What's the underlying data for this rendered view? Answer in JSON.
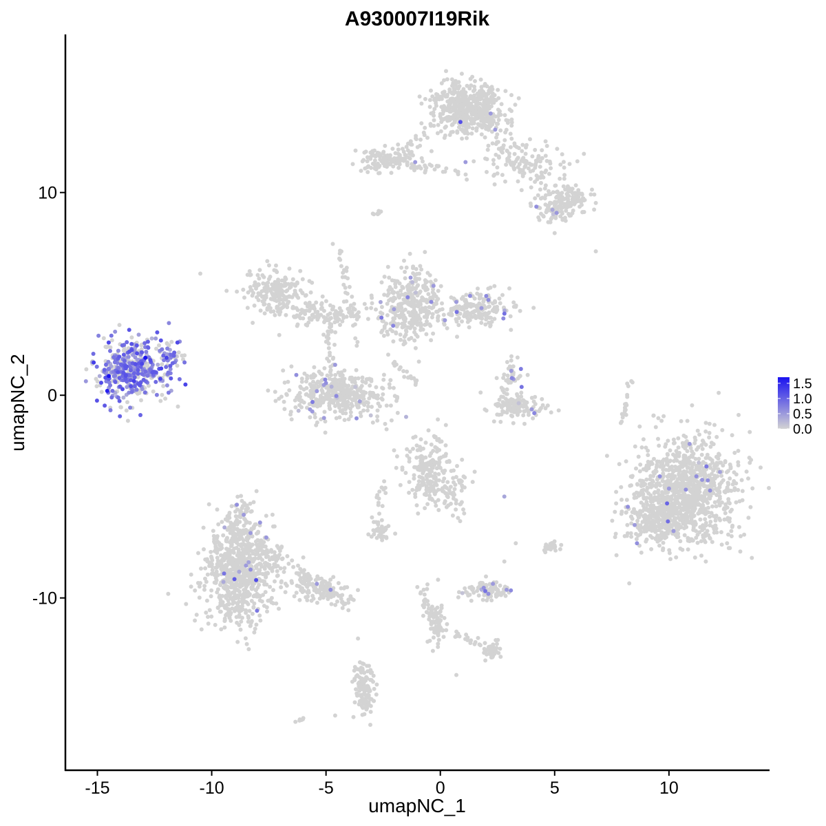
{
  "chart_data": {
    "type": "scatter",
    "title": "A930007I19Rik",
    "xlabel": "umapNC_1",
    "ylabel": "umapNC_2",
    "xlim": [
      -16.4,
      14.4
    ],
    "ylim": [
      -18.5,
      17.8
    ],
    "xticks": [
      -15,
      -10,
      -5,
      0,
      5,
      10
    ],
    "xtick_labels": [
      "-15",
      "-10",
      "-5",
      "0",
      "5",
      "10"
    ],
    "yticks": [
      -10,
      0,
      10
    ],
    "ytick_labels": [
      "-10",
      "0",
      "10"
    ],
    "color_scale": {
      "low_color": "#d3d3d3",
      "high_color": "#1a12f0",
      "min": 0.0,
      "max": 1.7,
      "ticks": [
        0.0,
        0.5,
        1.0,
        1.5
      ],
      "tick_labels": [
        "0.0",
        "0.5",
        "1.0",
        "1.5"
      ],
      "legend_position": "right"
    },
    "clusters": [
      {
        "cx": -13.5,
        "cy": 1.2,
        "sx": 0.8,
        "sy": 0.75,
        "n": 420,
        "expr_frac": 0.62,
        "expr_mean": 0.75
      },
      {
        "cx": -11.8,
        "cy": 2.0,
        "sx": 0.3,
        "sy": 0.4,
        "n": 30,
        "expr_frac": 0.6,
        "expr_mean": 0.7
      },
      {
        "cx": -8.8,
        "cy": -8.7,
        "sx": 0.75,
        "sy": 1.25,
        "n": 780,
        "expr_frac": 0.01,
        "expr_mean": 0.5
      },
      {
        "cx": -5.4,
        "cy": -9.6,
        "sx": 0.7,
        "sy": 0.35,
        "n": 90,
        "expr_frac": 0.02,
        "expr_mean": 0.5
      },
      {
        "cx": -4.5,
        "cy": 0.1,
        "sx": 1.1,
        "sy": 0.6,
        "n": 430,
        "expr_frac": 0.02,
        "expr_mean": 0.5
      },
      {
        "cx": -7.2,
        "cy": 5.1,
        "sx": 0.65,
        "sy": 0.55,
        "n": 190,
        "expr_frac": 0.0,
        "expr_mean": 0.4
      },
      {
        "cx": -5.0,
        "cy": 4.0,
        "sx": 0.9,
        "sy": 0.3,
        "n": 110,
        "expr_frac": 0.0,
        "expr_mean": 0.4
      },
      {
        "cx": -1.2,
        "cy": 4.5,
        "sx": 0.65,
        "sy": 0.85,
        "n": 330,
        "expr_frac": 0.015,
        "expr_mean": 0.5
      },
      {
        "cx": 1.6,
        "cy": 4.2,
        "sx": 0.7,
        "sy": 0.45,
        "n": 170,
        "expr_frac": 0.04,
        "expr_mean": 0.6
      },
      {
        "cx": 1.2,
        "cy": 14.2,
        "sx": 0.75,
        "sy": 0.65,
        "n": 500,
        "expr_frac": 0.005,
        "expr_mean": 0.5
      },
      {
        "cx": -2.3,
        "cy": 11.6,
        "sx": 0.7,
        "sy": 0.3,
        "n": 130,
        "expr_frac": 0.0,
        "expr_mean": 0.4
      },
      {
        "cx": 3.6,
        "cy": 11.5,
        "sx": 0.9,
        "sy": 0.6,
        "n": 90,
        "expr_frac": 0.0,
        "expr_mean": 0.4
      },
      {
        "cx": 5.6,
        "cy": 9.6,
        "sx": 0.5,
        "sy": 0.35,
        "n": 90,
        "expr_frac": 0.01,
        "expr_mean": 0.4
      },
      {
        "cx": 4.8,
        "cy": 9.2,
        "sx": 0.35,
        "sy": 0.4,
        "n": 60,
        "expr_frac": 0.01,
        "expr_mean": 0.4
      },
      {
        "cx": 3.4,
        "cy": -0.6,
        "sx": 0.55,
        "sy": 0.3,
        "n": 120,
        "expr_frac": 0.02,
        "expr_mean": 0.5
      },
      {
        "cx": 3.2,
        "cy": 0.7,
        "sx": 0.25,
        "sy": 0.5,
        "n": 35,
        "expr_frac": 0.05,
        "expr_mean": 0.5
      },
      {
        "cx": 10.7,
        "cy": -4.8,
        "sx": 1.15,
        "sy": 1.3,
        "n": 1050,
        "expr_frac": 0.01,
        "expr_mean": 0.55
      },
      {
        "cx": 9.4,
        "cy": -6.2,
        "sx": 0.6,
        "sy": 0.55,
        "n": 160,
        "expr_frac": 0.01,
        "expr_mean": 0.5
      },
      {
        "cx": -0.5,
        "cy": -3.8,
        "sx": 0.55,
        "sy": 0.8,
        "n": 200,
        "expr_frac": 0.0,
        "expr_mean": 0.4
      },
      {
        "cx": 0.6,
        "cy": -4.8,
        "sx": 0.3,
        "sy": 0.55,
        "n": 50,
        "expr_frac": 0.0,
        "expr_mean": 0.4
      },
      {
        "cx": 2.1,
        "cy": -9.6,
        "sx": 0.55,
        "sy": 0.22,
        "n": 90,
        "expr_frac": 0.05,
        "expr_mean": 0.5
      },
      {
        "cx": -0.1,
        "cy": -11.3,
        "sx": 0.2,
        "sy": 0.6,
        "n": 55,
        "expr_frac": 0.0,
        "expr_mean": 0.4
      },
      {
        "cx": -3.3,
        "cy": -14.5,
        "sx": 0.2,
        "sy": 0.6,
        "n": 90,
        "expr_frac": 0.0,
        "expr_mean": 0.4
      },
      {
        "cx": 2.3,
        "cy": -12.6,
        "sx": 0.2,
        "sy": 0.2,
        "n": 35,
        "expr_frac": 0.0,
        "expr_mean": 0.4
      },
      {
        "cx": -2.6,
        "cy": -6.8,
        "sx": 0.25,
        "sy": 0.2,
        "n": 40,
        "expr_frac": 0.0,
        "expr_mean": 0.4
      },
      {
        "cx": 4.9,
        "cy": -7.5,
        "sx": 0.25,
        "sy": 0.15,
        "n": 25,
        "expr_frac": 0.0,
        "expr_mean": 0.4
      }
    ],
    "paths": [
      {
        "from": [
          -11.9,
          0.9
        ],
        "to": [
          -11.5,
          2.7
        ],
        "n": 14,
        "jitter": 0.1,
        "expr_frac": 0.7
      },
      {
        "from": [
          1.5,
          14.0
        ],
        "to": [
          3.6,
          11.3
        ],
        "n": 60,
        "jitter": 0.3,
        "expr_frac": 0.0
      },
      {
        "from": [
          3.6,
          11.3
        ],
        "to": [
          5.9,
          9.6
        ],
        "n": 40,
        "jitter": 0.3,
        "expr_frac": 0.0
      },
      {
        "from": [
          0.3,
          14.0
        ],
        "to": [
          -1.5,
          12.2
        ],
        "n": 20,
        "jitter": 0.2,
        "expr_frac": 0.0
      },
      {
        "from": [
          -1.2,
          11.3
        ],
        "to": [
          1.0,
          11.0
        ],
        "n": 25,
        "jitter": 0.12,
        "expr_frac": 0.0
      },
      {
        "from": [
          -4.5,
          7.5
        ],
        "to": [
          -3.5,
          2.5
        ],
        "n": 35,
        "jitter": 0.12,
        "expr_frac": 0.0
      },
      {
        "from": [
          -4.9,
          3.8
        ],
        "to": [
          -4.8,
          1.5
        ],
        "n": 25,
        "jitter": 0.12,
        "expr_frac": 0.0
      },
      {
        "from": [
          -2.0,
          1.6
        ],
        "to": [
          -1.1,
          0.6
        ],
        "n": 20,
        "jitter": 0.08,
        "expr_frac": 0.0
      },
      {
        "from": [
          -2.4,
          3.1
        ],
        "to": [
          -1.7,
          4.0
        ],
        "n": 12,
        "jitter": 0.12,
        "expr_frac": 0.05
      },
      {
        "from": [
          -8.4,
          -7.1
        ],
        "to": [
          -4.0,
          -10.4
        ],
        "n": 100,
        "jitter": 0.25,
        "expr_frac": 0.02
      },
      {
        "from": [
          -9.0,
          -7.0
        ],
        "to": [
          -8.6,
          -5.3
        ],
        "n": 40,
        "jitter": 0.25,
        "expr_frac": 0.05
      },
      {
        "from": [
          -0.9,
          -9.4
        ],
        "to": [
          -0.1,
          -11.8
        ],
        "n": 40,
        "jitter": 0.12,
        "expr_frac": 0.0
      },
      {
        "from": [
          0.5,
          -11.7
        ],
        "to": [
          2.4,
          -12.6
        ],
        "n": 25,
        "jitter": 0.12,
        "expr_frac": 0.0
      },
      {
        "from": [
          -3.7,
          -13.5
        ],
        "to": [
          -3.1,
          -15.5
        ],
        "n": 40,
        "jitter": 0.15,
        "expr_frac": 0.0
      },
      {
        "from": [
          8.0,
          -1.3
        ],
        "to": [
          8.3,
          0.9
        ],
        "n": 20,
        "jitter": 0.08,
        "expr_frac": 0.0
      },
      {
        "from": [
          -2.4,
          -4.0
        ],
        "to": [
          -2.9,
          -6.3
        ],
        "n": 15,
        "jitter": 0.12,
        "expr_frac": 0.0
      },
      {
        "from": [
          2.6,
          -0.2
        ],
        "to": [
          3.2,
          1.3
        ],
        "n": 15,
        "jitter": 0.1,
        "expr_frac": 0.05
      },
      {
        "from": [
          -2.9,
          8.9
        ],
        "to": [
          -2.5,
          9.2
        ],
        "n": 8,
        "jitter": 0.05,
        "expr_frac": 0.0
      },
      {
        "from": [
          -6.3,
          -16.1
        ],
        "to": [
          -5.9,
          -15.9
        ],
        "n": 6,
        "jitter": 0.04,
        "expr_frac": 0.0
      }
    ],
    "singletons": [
      {
        "x": -10.5,
        "y": 6.0,
        "v": 0.0
      },
      {
        "x": 6.8,
        "y": 7.1,
        "v": 0.0
      },
      {
        "x": 5.0,
        "y": 8.0,
        "v": 0.0
      },
      {
        "x": 2.8,
        "y": -8.2,
        "v": 0.0
      },
      {
        "x": 2.8,
        "y": -5.0,
        "v": 0.4
      },
      {
        "x": -0.1,
        "y": -9.1,
        "v": 0.0
      },
      {
        "x": 3.3,
        "y": -7.3,
        "v": 0.0
      },
      {
        "x": -4.6,
        "y": -15.8,
        "v": 0.0
      },
      {
        "x": 0.7,
        "y": -13.8,
        "v": 0.0
      },
      {
        "x": -3.6,
        "y": -12.0,
        "v": 0.0
      },
      {
        "x": -14.5,
        "y": 0.95,
        "v": 1.7
      },
      {
        "x": -12.9,
        "y": 1.85,
        "v": 1.7
      },
      {
        "x": -13.4,
        "y": 0.7,
        "v": 1.3
      },
      {
        "x": -13.9,
        "y": 0.3,
        "v": 1.2
      },
      {
        "x": -12.3,
        "y": 1.3,
        "v": 1.1
      },
      {
        "x": -13.1,
        "y": 1.4,
        "v": 1.0
      },
      {
        "x": -14.1,
        "y": 1.8,
        "v": 1.0
      },
      {
        "x": -11.5,
        "y": 2.6,
        "v": 1.2
      },
      {
        "x": 1.1,
        "y": 11.5,
        "v": 0.5
      },
      {
        "x": -1.1,
        "y": 11.5,
        "v": 0.5
      },
      {
        "x": 2.2,
        "y": 13.9,
        "v": 0.5
      },
      {
        "x": 2.4,
        "y": 13.1,
        "v": 0.5
      },
      {
        "x": 4.2,
        "y": 9.3,
        "v": 0.6
      },
      {
        "x": -1.3,
        "y": 5.8,
        "v": 0.5
      },
      {
        "x": -0.3,
        "y": 5.4,
        "v": 0.5
      },
      {
        "x": 0.7,
        "y": 4.6,
        "v": 0.5
      },
      {
        "x": 1.3,
        "y": 4.9,
        "v": 0.6
      },
      {
        "x": 2.1,
        "y": 4.7,
        "v": 0.6
      },
      {
        "x": 1.8,
        "y": 4.3,
        "v": 0.5
      },
      {
        "x": 0.2,
        "y": 3.7,
        "v": 0.5
      },
      {
        "x": -6.3,
        "y": 1.0,
        "v": 0.6
      },
      {
        "x": -5.4,
        "y": 0.2,
        "v": 0.5
      },
      {
        "x": -5.0,
        "y": 0.6,
        "v": 0.6
      },
      {
        "x": -4.6,
        "y": 1.5,
        "v": 0.5
      },
      {
        "x": -5.7,
        "y": -0.7,
        "v": 0.5
      },
      {
        "x": -5.6,
        "y": -0.8,
        "v": 0.5
      },
      {
        "x": 3.1,
        "y": 1.2,
        "v": 0.5
      },
      {
        "x": 3.2,
        "y": 0.8,
        "v": 0.5
      },
      {
        "x": 4.0,
        "y": -0.7,
        "v": 0.5
      },
      {
        "x": -8.9,
        "y": -5.4,
        "v": 0.6
      },
      {
        "x": -8.6,
        "y": -5.9,
        "v": 0.5
      },
      {
        "x": -8.3,
        "y": -6.8,
        "v": 0.5
      },
      {
        "x": -8.3,
        "y": -8.6,
        "v": 0.6
      },
      {
        "x": -8.5,
        "y": -8.4,
        "v": 0.5
      },
      {
        "x": -5.4,
        "y": -9.3,
        "v": 0.5
      },
      {
        "x": -4.8,
        "y": -9.6,
        "v": 0.6
      },
      {
        "x": 1.9,
        "y": -9.5,
        "v": 0.6
      },
      {
        "x": 2.1,
        "y": -9.8,
        "v": 0.6
      },
      {
        "x": 2.3,
        "y": -9.3,
        "v": 0.5
      },
      {
        "x": 2.9,
        "y": -9.6,
        "v": 0.5
      },
      {
        "x": 9.6,
        "y": -4.0,
        "v": 0.6
      },
      {
        "x": 10.0,
        "y": -4.6,
        "v": 0.5
      },
      {
        "x": 10.9,
        "y": -2.4,
        "v": 0.5
      },
      {
        "x": 11.2,
        "y": -4.0,
        "v": 0.6
      },
      {
        "x": 11.7,
        "y": -4.2,
        "v": 0.6
      },
      {
        "x": 11.8,
        "y": -4.7,
        "v": 0.6
      },
      {
        "x": 8.2,
        "y": -5.5,
        "v": 0.6
      },
      {
        "x": 8.5,
        "y": -6.4,
        "v": 0.5
      },
      {
        "x": 8.6,
        "y": -7.3,
        "v": 0.6
      },
      {
        "x": 10.2,
        "y": -6.7,
        "v": 0.5
      }
    ]
  }
}
